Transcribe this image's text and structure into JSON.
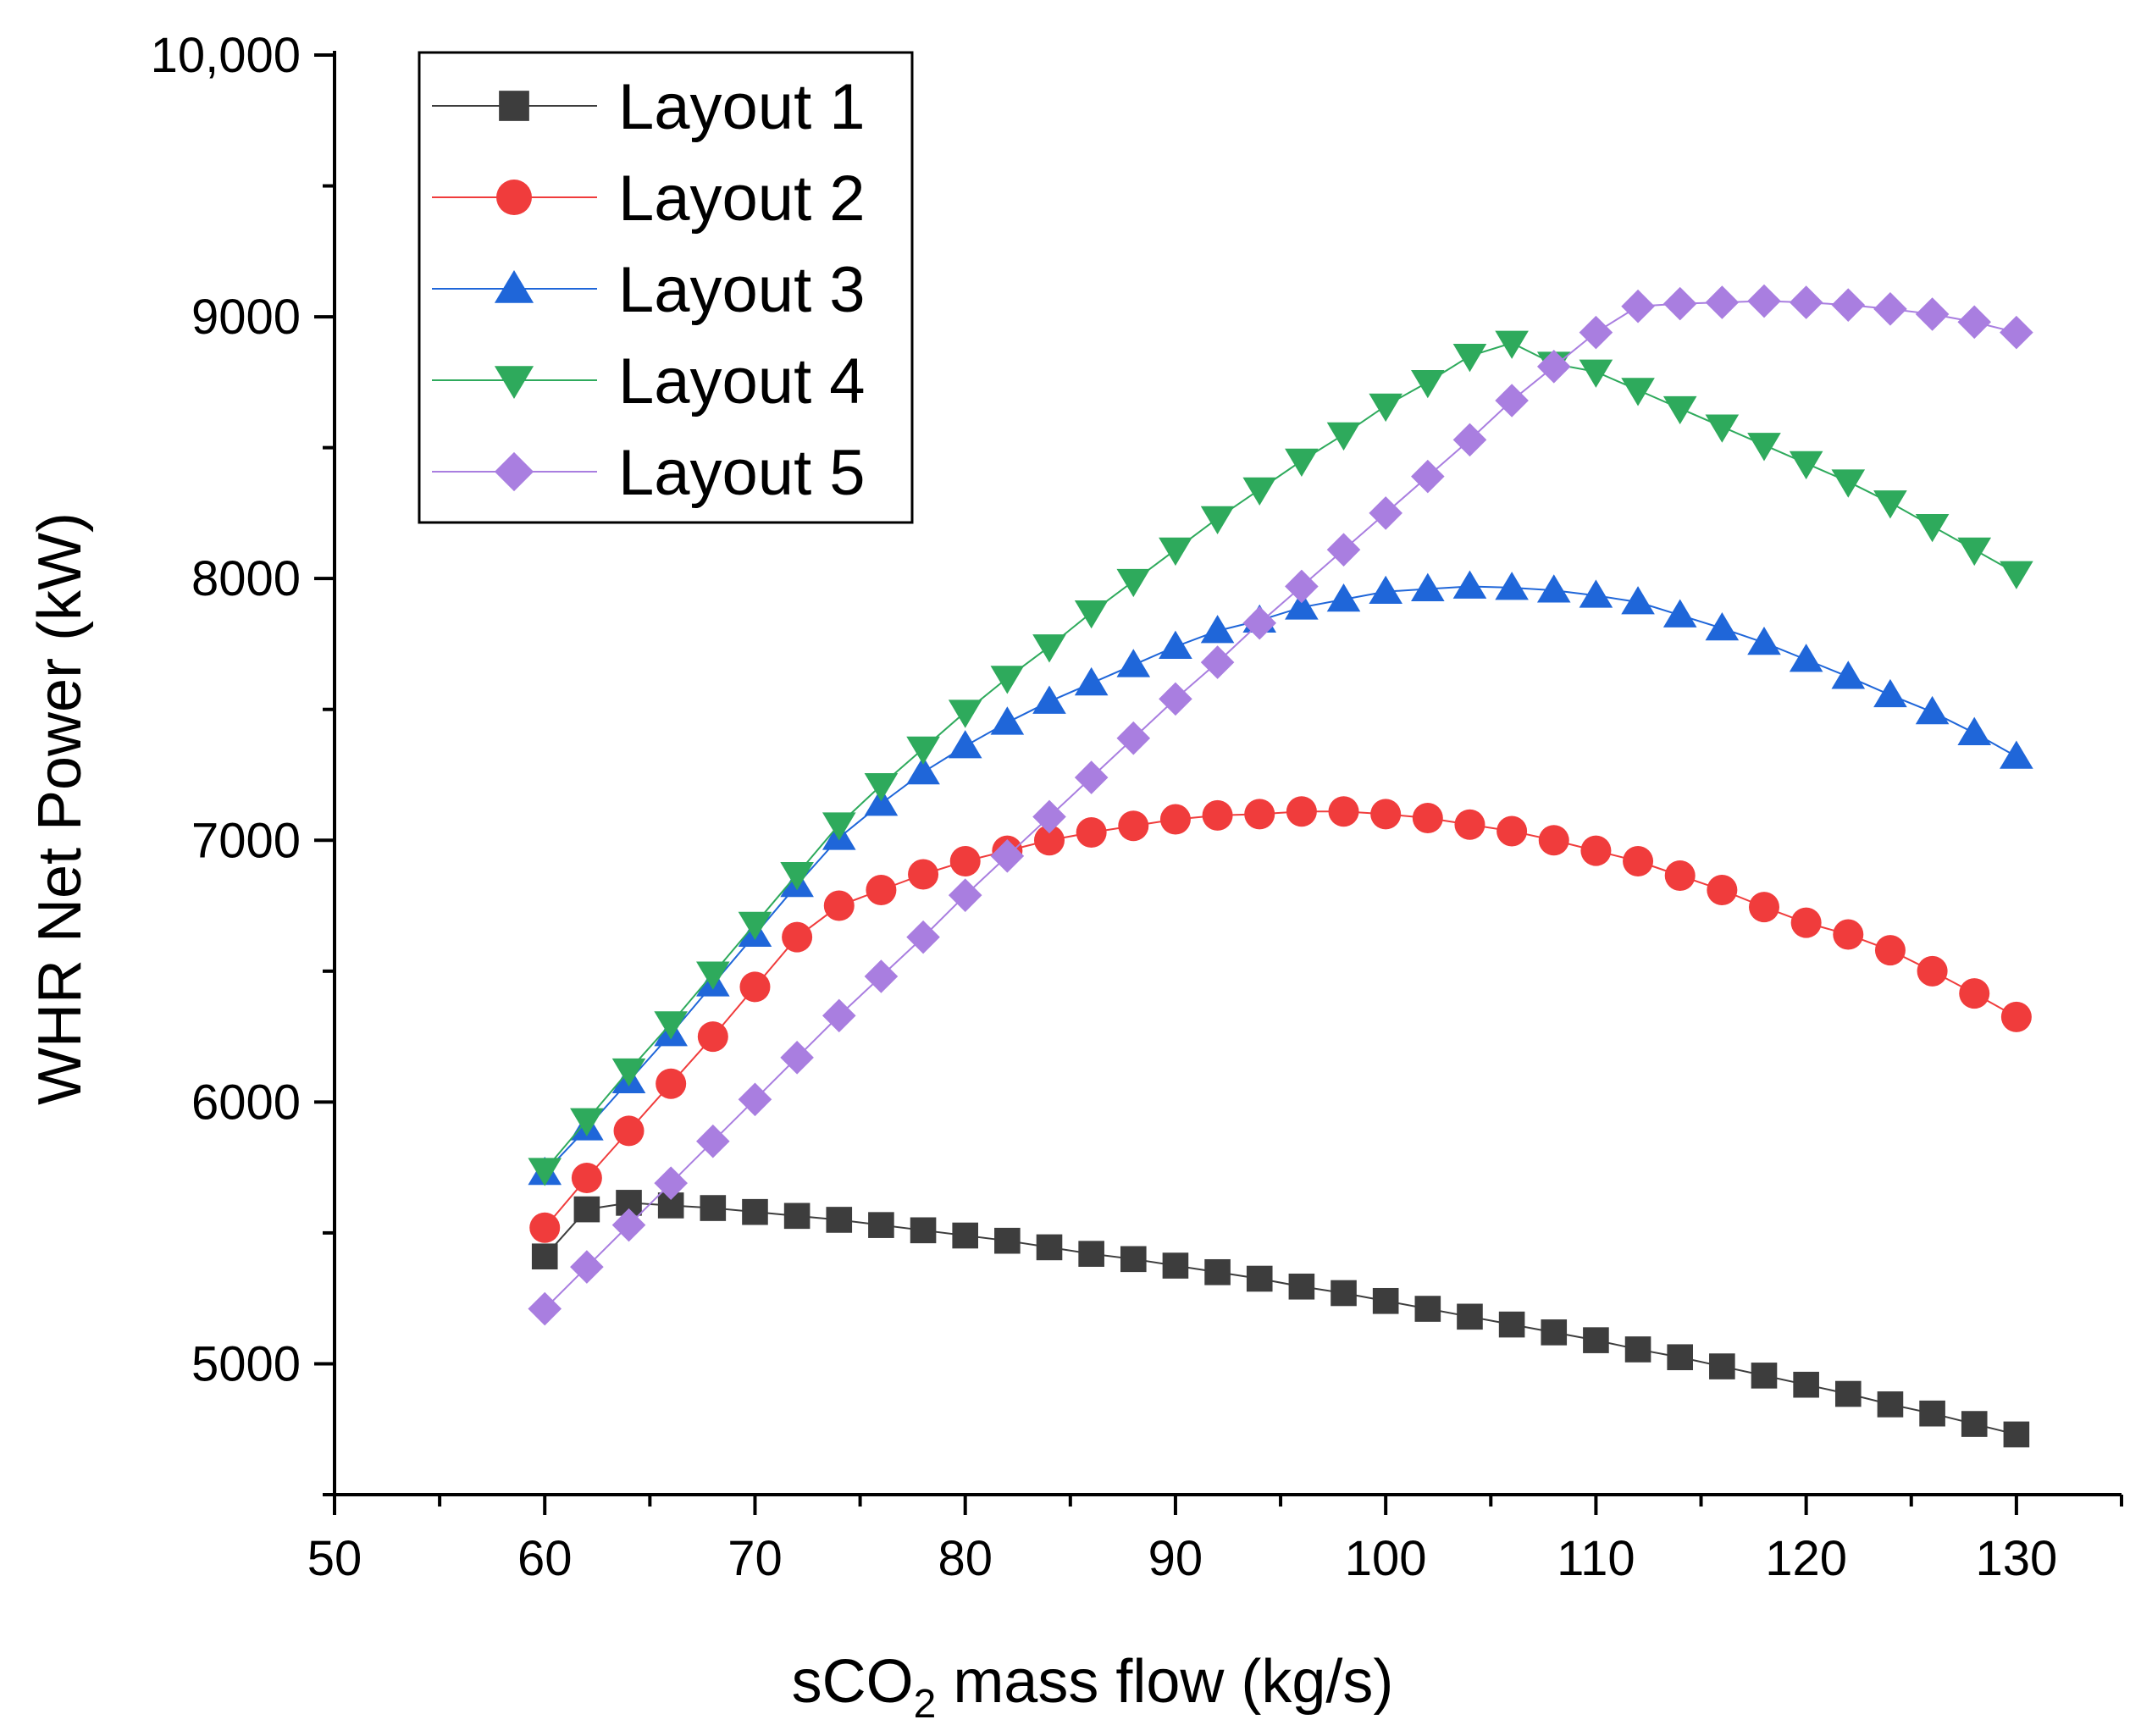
{
  "chart_data": {
    "type": "line",
    "title": "",
    "xlabel_prefix": "sCO",
    "xlabel_sub": "2",
    "xlabel_suffix": " mass flow (kg/s)",
    "ylabel": "WHR Net Power (kW)",
    "xlim": [
      50,
      135
    ],
    "ylim": [
      4500,
      10000
    ],
    "x_ticks": [
      50,
      60,
      70,
      80,
      90,
      100,
      110,
      120,
      130
    ],
    "y_ticks": [
      5000,
      6000,
      7000,
      8000,
      9000,
      10000
    ],
    "y_tick_labels": [
      "5000",
      "6000",
      "7000",
      "8000",
      "9000",
      "10,000"
    ],
    "legend_position": "top-left",
    "grid": false,
    "x": [
      60,
      62,
      64,
      66,
      68,
      70,
      72,
      74,
      76,
      78,
      80,
      82,
      84,
      86,
      88,
      90,
      92,
      94,
      96,
      98,
      100,
      102,
      104,
      106,
      108,
      110,
      112,
      114,
      116,
      118,
      120,
      122,
      124,
      126,
      128,
      130
    ],
    "series": [
      {
        "name": "Layout 1",
        "color": "#3d3d3d",
        "marker": "square",
        "values": [
          5410,
          5590,
          5615,
          5605,
          5595,
          5580,
          5565,
          5550,
          5530,
          5510,
          5490,
          5470,
          5445,
          5420,
          5400,
          5375,
          5350,
          5325,
          5295,
          5270,
          5240,
          5210,
          5180,
          5150,
          5120,
          5090,
          5055,
          5025,
          4990,
          4955,
          4920,
          4885,
          4845,
          4810,
          4770,
          4730
        ]
      },
      {
        "name": "Layout 2",
        "color": "#f03c3c",
        "marker": "circle",
        "values": [
          5520,
          5710,
          5890,
          6070,
          6250,
          6440,
          6630,
          6750,
          6810,
          6870,
          6920,
          6960,
          7000,
          7030,
          7055,
          7080,
          7095,
          7100,
          7110,
          7110,
          7100,
          7085,
          7060,
          7035,
          7000,
          6960,
          6920,
          6865,
          6810,
          6745,
          6685,
          6640,
          6580,
          6500,
          6415,
          6325
        ]
      },
      {
        "name": "Layout 3",
        "color": "#1f66d9",
        "marker": "triangle-up",
        "values": [
          5730,
          5900,
          6080,
          6260,
          6450,
          6640,
          6830,
          7010,
          7140,
          7260,
          7360,
          7450,
          7530,
          7600,
          7670,
          7740,
          7800,
          7840,
          7890,
          7920,
          7950,
          7960,
          7970,
          7965,
          7955,
          7935,
          7910,
          7860,
          7810,
          7755,
          7690,
          7625,
          7555,
          7490,
          7410,
          7320
        ]
      },
      {
        "name": "Layout 4",
        "color": "#2eaa5c",
        "marker": "triangle-down",
        "values": [
          5740,
          5930,
          6120,
          6300,
          6490,
          6680,
          6870,
          7060,
          7210,
          7350,
          7490,
          7620,
          7740,
          7870,
          7990,
          8110,
          8230,
          8340,
          8450,
          8550,
          8660,
          8750,
          8850,
          8900,
          8820,
          8790,
          8720,
          8650,
          8580,
          8510,
          8440,
          8370,
          8290,
          8200,
          8110,
          8020
        ]
      },
      {
        "name": "Layout 5",
        "color": "#a97ee0",
        "marker": "diamond",
        "values": [
          5210,
          5370,
          5530,
          5690,
          5850,
          6010,
          6170,
          6330,
          6480,
          6630,
          6790,
          6940,
          7090,
          7240,
          7390,
          7540,
          7680,
          7830,
          7970,
          8110,
          8250,
          8390,
          8530,
          8680,
          8810,
          8940,
          9040,
          9050,
          9055,
          9060,
          9055,
          9045,
          9030,
          9010,
          8980,
          8940
        ]
      }
    ]
  }
}
